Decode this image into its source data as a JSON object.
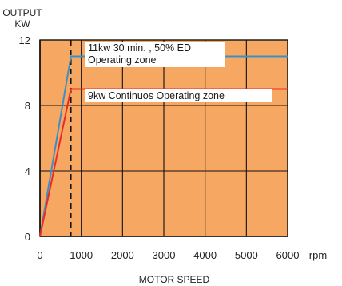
{
  "chart_data": {
    "type": "line",
    "ylabel_line1": "OUTPUT",
    "ylabel_line2": "KW",
    "xlabel": "MOTOR SPEED",
    "x_unit": "rpm",
    "xlim": [
      0,
      6000
    ],
    "ylim": [
      0,
      12
    ],
    "x_ticks": [
      0,
      1000,
      2000,
      3000,
      4000,
      5000,
      6000
    ],
    "y_ticks": [
      0,
      4,
      8,
      12
    ],
    "grid": true,
    "base_speed_marker": 750,
    "series": [
      {
        "x": [
          0,
          750,
          6000
        ],
        "y": [
          0,
          11,
          11
        ],
        "color": "#3b8fc4"
      },
      {
        "x": [
          0,
          750,
          6000
        ],
        "y": [
          0,
          9,
          9
        ],
        "color": "#ee2a24"
      }
    ],
    "annotations": [
      {
        "lines": [
          "11kw  30 min. , 50% ED",
          "Operating zone"
        ]
      },
      {
        "lines": [
          "9kw  Continuos Operating zone"
        ]
      }
    ]
  },
  "colors": {
    "plot_background": "#f6a862",
    "gridline": "#111111",
    "label_box": "#ffffff"
  }
}
